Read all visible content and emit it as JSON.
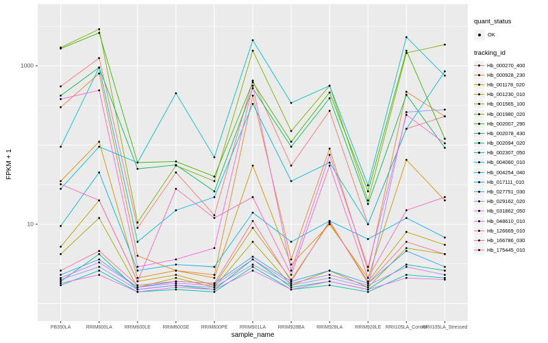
{
  "chart_data": {
    "type": "line",
    "title": "",
    "xlabel": "sample_name",
    "ylabel": "FPKM + 1",
    "y_scale": "log10",
    "ylim": [
      0.6,
      6000
    ],
    "y_ticks": [
      10,
      1000
    ],
    "grid": {
      "major_y": [
        1,
        10,
        100,
        1000
      ],
      "minor_y": [
        3.16,
        31.6,
        316,
        3160
      ]
    },
    "panel_bg": "#EBEBEB",
    "grid_color": "#FFFFFF",
    "point_color": "#000000",
    "legend": {
      "quant_status": {
        "title": "quant_status",
        "items": [
          "OK"
        ]
      },
      "tracking_id": {
        "title": "tracking_id"
      }
    },
    "x_categories": [
      "PB350LA",
      "RRIM600LA",
      "RRIM600LE",
      "RRIM600SE",
      "RRIM600PE",
      "RRIM901LA",
      "RRIM928BA",
      "RRIM928LA",
      "RRIM928LE",
      "RRII105LA_Control",
      "RRII105LA_Stressed"
    ],
    "series": [
      {
        "name": "Hb_000270_400",
        "color": "#F8766D",
        "values": [
          550,
          1250,
          9,
          45,
          13,
          650,
          55,
          270,
          10,
          160,
          230
        ]
      },
      {
        "name": "Hb_000928_230",
        "color": "#E88526",
        "values": [
          300,
          800,
          4,
          2.6,
          2.3,
          420,
          3.6,
          90,
          2.6,
          470,
          230
        ]
      },
      {
        "name": "Hb_001178_020",
        "color": "#D89000",
        "values": [
          35,
          110,
          2.1,
          2.6,
          2.1,
          55,
          3.1,
          10,
          2.1,
          65,
          20
        ]
      },
      {
        "name": "Hb_001230_010",
        "color": "#C09B00",
        "values": [
          5.2,
          20,
          1.9,
          2.3,
          1.7,
          9,
          2,
          10.5,
          1.9,
          8,
          5.5
        ]
      },
      {
        "name": "Hb_001565_100",
        "color": "#A3A500",
        "values": [
          4.2,
          12,
          1.6,
          2.1,
          1.6,
          6,
          1.7,
          2.6,
          1.6,
          5,
          4.2
        ]
      },
      {
        "name": "Hb_001980_020",
        "color": "#7CAE00",
        "values": [
          1700,
          2900,
          10.5,
          55,
          35,
          1550,
          150,
          560,
          20,
          1450,
          1850
        ]
      },
      {
        "name": "Hb_002007_290",
        "color": "#39B600",
        "values": [
          1650,
          2600,
          60,
          62,
          40,
          620,
          110,
          460,
          26,
          1550,
          120
        ]
      },
      {
        "name": "Hb_002078_430",
        "color": "#00BB4E",
        "values": [
          420,
          950,
          50,
          56,
          26,
          520,
          95,
          390,
          18,
          430,
          92
        ]
      },
      {
        "name": "Hb_002094_020",
        "color": "#00BF7D",
        "values": [
          1.9,
          4.2,
          1.5,
          1.7,
          1.5,
          3.6,
          1.6,
          1.9,
          1.5,
          3.1,
          2.6
        ]
      },
      {
        "name": "Hb_002307_050",
        "color": "#00C1A3",
        "values": [
          1.7,
          2.6,
          1.4,
          1.5,
          1.4,
          2.9,
          1.5,
          1.7,
          1.4,
          2.3,
          2.1
        ]
      },
      {
        "name": "Hb_004060_010",
        "color": "#00BFC4",
        "values": [
          28,
          95,
          60,
          450,
          70,
          2100,
          340,
          560,
          31,
          2300,
          750
        ]
      },
      {
        "name": "Hb_004254_040",
        "color": "#00BAE0",
        "values": [
          95,
          950,
          6,
          15,
          22,
          330,
          35,
          60,
          10,
          160,
          850
        ]
      },
      {
        "name": "Hb_017111_010",
        "color": "#00B0F6",
        "values": [
          9.5,
          45,
          2.6,
          3.1,
          2.9,
          14,
          6,
          11,
          6.5,
          12,
          6.8
        ]
      },
      {
        "name": "Hb_027751_030",
        "color": "#35A2FF",
        "values": [
          2.3,
          3.6,
          1.6,
          1.9,
          1.8,
          3.9,
          1.9,
          2.6,
          1.8,
          4.6,
          2.9
        ]
      },
      {
        "name": "Hb_029162_020",
        "color": "#9590FF",
        "values": [
          2,
          2.9,
          1.5,
          1.7,
          1.6,
          3.1,
          1.7,
          2.1,
          1.6,
          260,
          280
        ]
      },
      {
        "name": "Hb_031862_050",
        "color": "#C77CFF",
        "values": [
          2.1,
          3.3,
          1.6,
          1.8,
          1.7,
          3.6,
          1.8,
          2.3,
          1.7,
          2.9,
          2.3
        ]
      },
      {
        "name": "Hb_048610_010",
        "color": "#E76BF3",
        "values": [
          1.8,
          2.3,
          1.4,
          1.6,
          1.5,
          2.6,
          1.5,
          1.9,
          1.5,
          2.1,
          2
        ]
      },
      {
        "name": "Hb_126669_010",
        "color": "#FA62DB",
        "values": [
          380,
          490,
          2.9,
          3.6,
          5,
          560,
          2.6,
          75,
          2.9,
          240,
          105
        ]
      },
      {
        "name": "Hb_166786_030",
        "color": "#FF62BC",
        "values": [
          32,
          20,
          1.9,
          28,
          12,
          22,
          2.3,
          55,
          2.1,
          15,
          22
        ]
      },
      {
        "name": "Hb_175445_010",
        "color": "#FF6A98",
        "values": [
          2.6,
          4.6,
          1.7,
          1.9,
          1.8,
          11,
          1.9,
          11,
          1.8,
          6,
          4.2
        ]
      }
    ]
  }
}
